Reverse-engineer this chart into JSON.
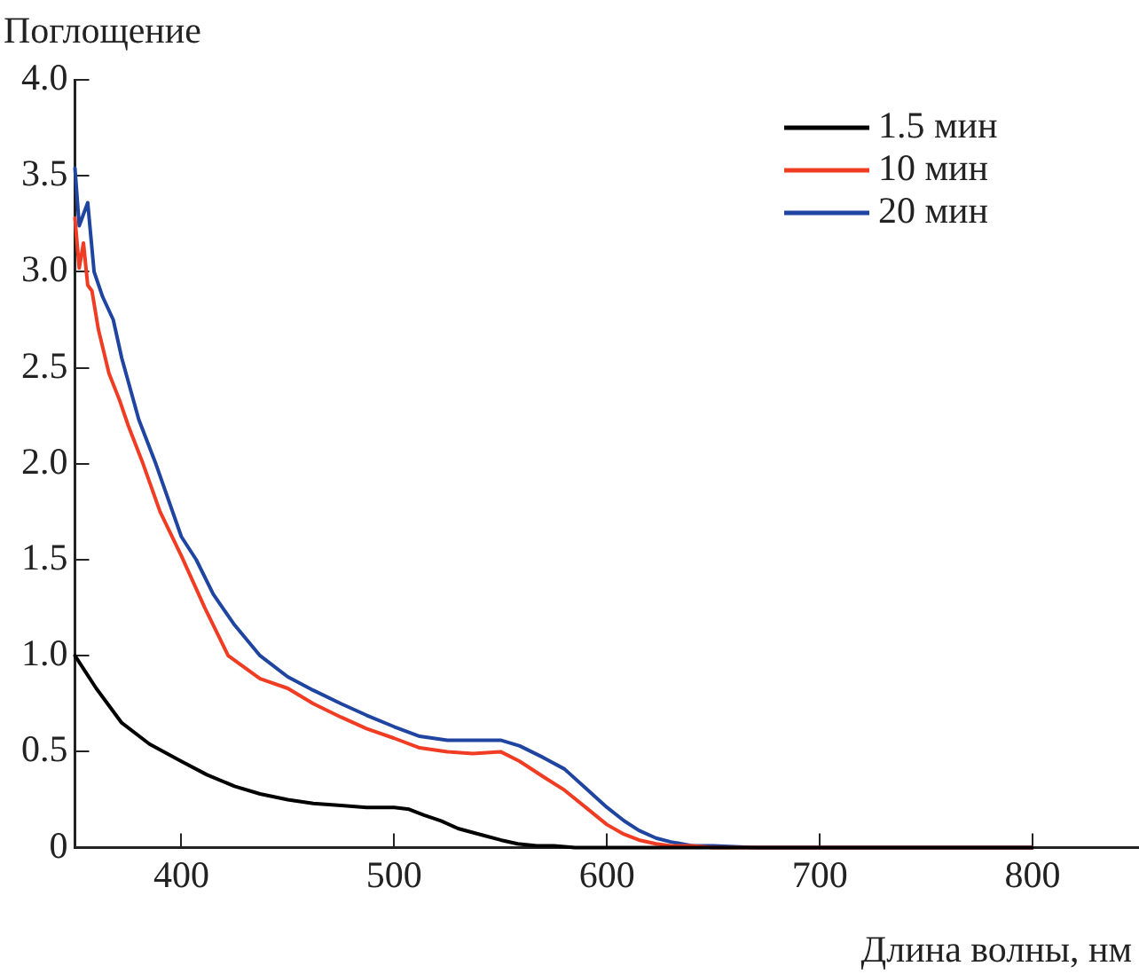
{
  "chart_data": {
    "type": "line",
    "ylabel": "Поглощение",
    "xlabel": "Длина волны, нм",
    "xlim": [
      350,
      850
    ],
    "xticks": [
      400,
      500,
      600,
      700,
      800
    ],
    "ylim": [
      0,
      4.0
    ],
    "yticks": [
      {
        "value": 0,
        "label": "0"
      },
      {
        "value": 0.5,
        "label": "0.5"
      },
      {
        "value": 1.0,
        "label": "1.0"
      },
      {
        "value": 1.5,
        "label": "1.5"
      },
      {
        "value": 2.0,
        "label": "2.0"
      },
      {
        "value": 2.5,
        "label": "2.5"
      },
      {
        "value": 3.0,
        "label": "3.0"
      },
      {
        "value": 3.5,
        "label": "3.5"
      },
      {
        "value": 4.0,
        "label": "4.0"
      }
    ],
    "grid": false,
    "legend": "top right",
    "marker": "none",
    "line_style": "solid",
    "series": [
      {
        "name": "1.5 мин",
        "color": "#000000",
        "x": [
          350,
          360,
          372,
          385,
          400,
          412,
          425,
          437,
          450,
          462,
          475,
          487,
          500,
          507,
          514,
          522,
          530,
          540,
          550,
          558,
          567,
          575,
          585,
          600,
          650,
          700,
          800
        ],
        "values": [
          1.0,
          0.83,
          0.65,
          0.54,
          0.45,
          0.38,
          0.32,
          0.28,
          0.25,
          0.23,
          0.22,
          0.21,
          0.21,
          0.2,
          0.17,
          0.14,
          0.1,
          0.07,
          0.04,
          0.02,
          0.01,
          0.01,
          0,
          0,
          0,
          0,
          0
        ]
      },
      {
        "name": "10 мин",
        "color": "#f03c23",
        "x": [
          350,
          352,
          354,
          356,
          358,
          361,
          366,
          371,
          375,
          382,
          390,
          400,
          411,
          422,
          437,
          450,
          462,
          475,
          487,
          500,
          512,
          525,
          537,
          550,
          559,
          570,
          580,
          590,
          600,
          608,
          615,
          623,
          630,
          640,
          650,
          700,
          800
        ],
        "values": [
          3.28,
          3.02,
          3.15,
          2.93,
          2.9,
          2.7,
          2.47,
          2.33,
          2.2,
          2.0,
          1.75,
          1.52,
          1.25,
          1.0,
          0.88,
          0.83,
          0.75,
          0.68,
          0.62,
          0.57,
          0.52,
          0.5,
          0.49,
          0.5,
          0.45,
          0.37,
          0.3,
          0.21,
          0.12,
          0.07,
          0.04,
          0.02,
          0.01,
          0.01,
          0,
          0,
          0
        ]
      },
      {
        "name": "20 мин",
        "color": "#1f45a0",
        "x": [
          350,
          352,
          354,
          356,
          359,
          363,
          368,
          372,
          380,
          388,
          400,
          407,
          415,
          425,
          437,
          450,
          462,
          475,
          487,
          500,
          512,
          525,
          537,
          550,
          559,
          570,
          580,
          590,
          600,
          608,
          615,
          623,
          630,
          640,
          650,
          670,
          700,
          800
        ],
        "values": [
          3.54,
          3.24,
          3.3,
          3.36,
          3.0,
          2.87,
          2.75,
          2.55,
          2.23,
          2.0,
          1.62,
          1.5,
          1.32,
          1.16,
          1.0,
          0.89,
          0.82,
          0.75,
          0.69,
          0.63,
          0.58,
          0.56,
          0.56,
          0.56,
          0.53,
          0.47,
          0.41,
          0.31,
          0.21,
          0.14,
          0.09,
          0.05,
          0.03,
          0.01,
          0.01,
          0,
          0,
          0
        ]
      }
    ]
  }
}
